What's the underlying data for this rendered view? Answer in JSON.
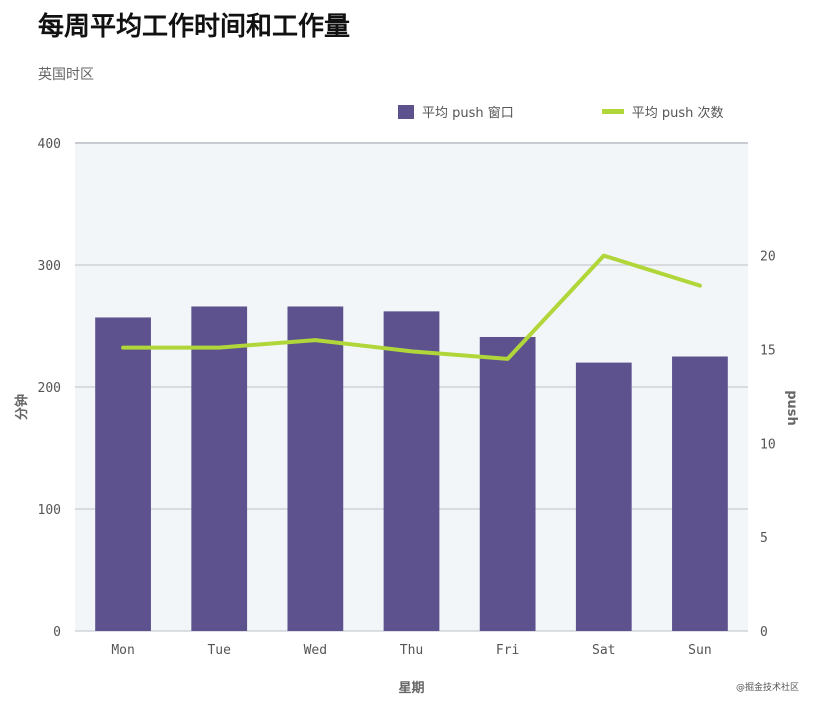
{
  "header": {
    "title": "每周平均工作时间和工作量",
    "subtitle": "英国时区"
  },
  "watermark": "@掘金技术社区",
  "colors": {
    "bar": "#5d528e",
    "line": "#b0d63a",
    "plot_bg": "#f3f6f9",
    "grid": "#c8ccd2"
  },
  "chart_data": {
    "type": "bar",
    "title": "每周平均工作时间和工作量",
    "subtitle": "英国时区",
    "xlabel": "星期",
    "ylabel": "分钟",
    "y2label": "push",
    "categories": [
      "Mon",
      "Tue",
      "Wed",
      "Thu",
      "Fri",
      "Sat",
      "Sun"
    ],
    "ylim": [
      0,
      400
    ],
    "yticks": [
      0,
      100,
      200,
      300,
      400
    ],
    "y2lim": [
      0,
      26
    ],
    "y2ticks": [
      0,
      5,
      10,
      15,
      20
    ],
    "legend_position": "top-right",
    "grid": true,
    "series": [
      {
        "name": "平均 push 窗口",
        "type": "bar",
        "axis": "left",
        "values": [
          257,
          266,
          266,
          262,
          241,
          220,
          225
        ]
      },
      {
        "name": "平均 push 次数",
        "type": "line",
        "axis": "right",
        "values": [
          15.1,
          15.1,
          15.5,
          14.9,
          14.5,
          20.0,
          18.4
        ]
      }
    ]
  }
}
